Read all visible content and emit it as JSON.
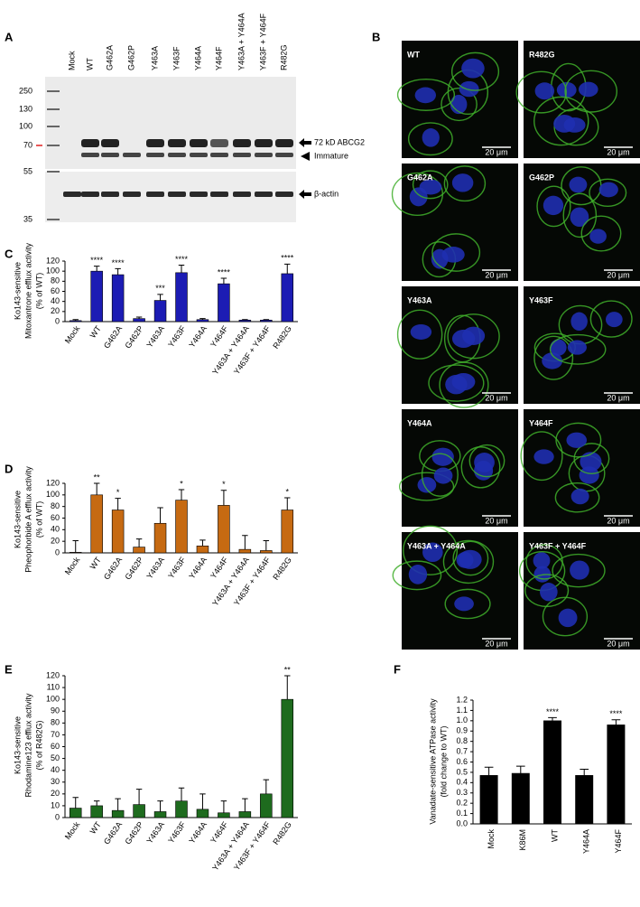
{
  "blot": {
    "panel": "A",
    "lanes": [
      "Mock",
      "WT",
      "G462A",
      "G462P",
      "Y463A",
      "Y463F",
      "Y464A",
      "Y464F",
      "Y463A + Y464A",
      "Y463F + Y464F",
      "R482G"
    ],
    "markers": [
      "250",
      "130",
      "100",
      "70",
      "55",
      "35"
    ],
    "annotations": [
      "72 kD ABCG2",
      "Immature",
      "β-actin"
    ]
  },
  "micrographs": {
    "panel": "B",
    "labels": [
      "WT",
      "R482G",
      "G462A",
      "G462P",
      "Y463A",
      "Y463F",
      "Y464A",
      "Y464F",
      "Y463A + Y464A",
      "Y463F + Y464F"
    ],
    "scale_bar": "20 μm"
  },
  "chart_data": [
    {
      "type": "bar",
      "panel": "C",
      "ylabel": [
        "Ko143-sensitive",
        "Mitoxantrone efflux activity",
        "(% of WT)"
      ],
      "categories": [
        "Mock",
        "WT",
        "G462A",
        "G462P",
        "Y463A",
        "Y463F",
        "Y464A",
        "Y464F",
        "Y463A + Y464A",
        "Y463F + Y464F",
        "R482G"
      ],
      "values": [
        2,
        100,
        93,
        6,
        42,
        97,
        4,
        75,
        3,
        3,
        95
      ],
      "errors": [
        2,
        10,
        12,
        3,
        12,
        15,
        2,
        11,
        1,
        1,
        19
      ],
      "annotations": [
        null,
        "****",
        "****",
        null,
        "***",
        "****",
        null,
        "****",
        null,
        null,
        "****"
      ],
      "color": "#1c1cb4",
      "ylim": [
        0,
        120
      ],
      "yticks": [
        0,
        20,
        40,
        60,
        80,
        100,
        120
      ]
    },
    {
      "type": "bar",
      "panel": "D",
      "ylabel": [
        "Ko143-sensitive",
        "Pheophorbide A efflux activity",
        "(% of WT)"
      ],
      "categories": [
        "Mock",
        "WT",
        "G462A",
        "G462P",
        "Y463A",
        "Y463F",
        "Y464A",
        "Y464F",
        "Y463A + Y464A",
        "Y463F + Y464F",
        "R482G"
      ],
      "values": [
        1,
        100,
        74,
        10,
        51,
        91,
        12,
        82,
        6,
        4,
        74
      ],
      "errors": [
        20,
        20,
        20,
        14,
        27,
        18,
        10,
        26,
        24,
        17,
        21
      ],
      "annotations": [
        null,
        "**",
        "*",
        null,
        null,
        "*",
        null,
        "*",
        null,
        null,
        "*"
      ],
      "color": "#c66a12",
      "ylim": [
        0,
        120
      ],
      "yticks": [
        0,
        20,
        40,
        60,
        80,
        100,
        120
      ]
    },
    {
      "type": "bar",
      "panel": "E",
      "ylabel": [
        "Ko143-sensitive",
        "Rhodamine123 efflux activity",
        "(% of R482G)"
      ],
      "categories": [
        "Mock",
        "WT",
        "G462A",
        "G462P",
        "Y463A",
        "Y463F",
        "Y464A",
        "Y464F",
        "Y463A + Y464A",
        "Y463F + Y464F",
        "R482G"
      ],
      "values": [
        8,
        10,
        6,
        11,
        5,
        14,
        7,
        4,
        5,
        20,
        100
      ],
      "errors": [
        9,
        4,
        10,
        13,
        9,
        11,
        13,
        10,
        11,
        12,
        20
      ],
      "annotations": [
        null,
        null,
        null,
        null,
        null,
        null,
        null,
        null,
        null,
        null,
        "**"
      ],
      "color": "#1e6b1e",
      "ylim": [
        0,
        120
      ],
      "yticks": [
        0,
        10,
        20,
        30,
        40,
        50,
        60,
        70,
        80,
        90,
        100,
        110,
        120
      ]
    },
    {
      "type": "bar",
      "panel": "F",
      "ylabel": [
        "Vanadate-sensitive ATPase activity",
        "(fold change to WT)"
      ],
      "categories": [
        "Mock",
        "K86M",
        "WT",
        "Y464A",
        "Y464F"
      ],
      "values": [
        0.47,
        0.49,
        1.0,
        0.47,
        0.96
      ],
      "errors": [
        0.08,
        0.07,
        0.03,
        0.06,
        0.05
      ],
      "annotations": [
        null,
        null,
        "****",
        null,
        "****"
      ],
      "color": "#000000",
      "ylim": [
        0,
        1.2
      ],
      "yticks": [
        {
          "value": 0,
          "label": "0.0"
        },
        0.1,
        0.2,
        0.3,
        0.4,
        0.5,
        0.6,
        0.7,
        0.8,
        0.9,
        {
          "value": 1,
          "label": "1.0"
        },
        1.1,
        1.2
      ]
    }
  ]
}
